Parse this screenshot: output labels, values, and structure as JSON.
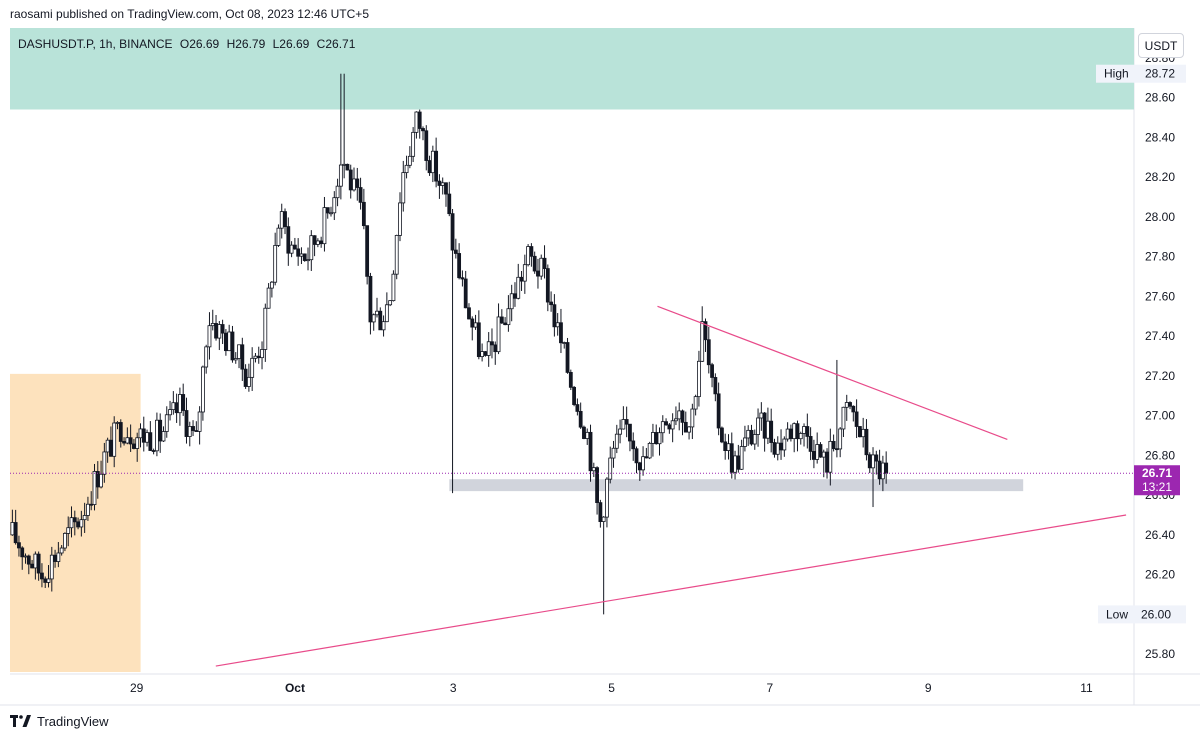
{
  "header": {
    "publisher": "raosami published on TradingView.com, Oct 08, 2023 12:46 UTC+5"
  },
  "legend": {
    "symbol": "DASHUSDT.P, 1h, BINANCE",
    "open_key": "O",
    "open": "26.69",
    "high_key": "H",
    "high": "26.79",
    "low_key": "L",
    "low": "26.69",
    "close_key": "C",
    "close": "26.71"
  },
  "currency_button": "USDT",
  "footer": {
    "brand": "TradingView",
    "logo_icon": "tradingview-logo-icon"
  },
  "colors": {
    "candle": "#131722",
    "resistance_zone": "#b9e3d9",
    "demand_zone": "#fde2bd",
    "support_band": "#d1d4dc",
    "trendline": "#e84b8a",
    "price_label_bg": "#9c27b0",
    "price_line": "#9c27b0"
  },
  "price_labels": {
    "high_label": "High",
    "high_value": "28.72",
    "low_label": "Low",
    "low_value": "26.00",
    "last_price": "26.71",
    "countdown": "13:21"
  },
  "chart_data": {
    "type": "candlestick",
    "symbol": "DASHUSDT.P",
    "interval": "1h",
    "exchange": "BINANCE",
    "ylim": [
      25.7,
      28.95
    ],
    "xlim": [
      -1.6,
      12.6
    ],
    "y_ticks": [
      "25.80",
      "26.00",
      "26.20",
      "26.40",
      "26.60",
      "26.80",
      "27.00",
      "27.20",
      "27.40",
      "27.60",
      "27.80",
      "28.00",
      "28.20",
      "28.40",
      "28.60",
      "28.80"
    ],
    "y_tick_values": [
      25.8,
      26.0,
      26.2,
      26.4,
      26.6,
      26.8,
      27.0,
      27.2,
      27.4,
      27.6,
      27.8,
      28.0,
      28.2,
      28.4,
      28.6,
      28.8
    ],
    "x_ticks": [
      {
        "label": "29",
        "day": 0
      },
      {
        "label": "Oct",
        "day": 2
      },
      {
        "label": "3",
        "day": 4
      },
      {
        "label": "5",
        "day": 6
      },
      {
        "label": "7",
        "day": 8
      },
      {
        "label": "9",
        "day": 10
      },
      {
        "label": "11",
        "day": 12
      }
    ],
    "x_unit": "days from Sep 29",
    "anchors": [
      [
        -1.57,
        26.4
      ],
      [
        -1.2,
        26.2
      ],
      [
        -0.7,
        26.5
      ],
      [
        -0.4,
        26.8
      ],
      [
        -0.2,
        26.95
      ],
      [
        0.0,
        26.9
      ],
      [
        0.3,
        26.9
      ],
      [
        0.55,
        27.05
      ],
      [
        0.75,
        26.85
      ],
      [
        0.9,
        27.5
      ],
      [
        1.2,
        27.35
      ],
      [
        1.4,
        27.2
      ],
      [
        1.6,
        27.4
      ],
      [
        1.8,
        28.0
      ],
      [
        1.95,
        27.85
      ],
      [
        2.15,
        27.8
      ],
      [
        2.4,
        28.0
      ],
      [
        2.6,
        28.3
      ],
      [
        2.85,
        28.0
      ],
      [
        2.95,
        27.5
      ],
      [
        3.1,
        27.5
      ],
      [
        3.2,
        27.6
      ],
      [
        3.35,
        28.2
      ],
      [
        3.55,
        28.5
      ],
      [
        3.7,
        28.3
      ],
      [
        3.9,
        28.1
      ],
      [
        4.0,
        27.85
      ],
      [
        4.2,
        27.5
      ],
      [
        4.4,
        27.25
      ],
      [
        4.55,
        27.4
      ],
      [
        4.75,
        27.6
      ],
      [
        4.95,
        27.8
      ],
      [
        5.15,
        27.7
      ],
      [
        5.3,
        27.45
      ],
      [
        5.5,
        27.15
      ],
      [
        5.7,
        26.9
      ],
      [
        5.85,
        26.45
      ],
      [
        6.0,
        26.8
      ],
      [
        6.2,
        26.95
      ],
      [
        6.4,
        26.75
      ],
      [
        6.6,
        26.95
      ],
      [
        6.85,
        27.05
      ],
      [
        7.0,
        26.95
      ],
      [
        7.15,
        27.45
      ],
      [
        7.3,
        27.05
      ],
      [
        7.4,
        26.9
      ],
      [
        7.55,
        26.75
      ],
      [
        7.75,
        26.9
      ],
      [
        7.95,
        26.95
      ],
      [
        8.1,
        26.85
      ],
      [
        8.3,
        26.95
      ],
      [
        8.5,
        26.9
      ],
      [
        8.7,
        26.75
      ],
      [
        8.85,
        26.9
      ],
      [
        9.0,
        27.05
      ],
      [
        9.2,
        26.85
      ],
      [
        9.3,
        26.75
      ],
      [
        9.5,
        26.7
      ]
    ],
    "spikes": [
      {
        "day": 1.4,
        "low": 27.12
      },
      {
        "day": 2.6,
        "high": 28.72
      },
      {
        "day": 4.0,
        "low": 26.61
      },
      {
        "day": 5.9,
        "low": 26.0
      },
      {
        "day": 7.15,
        "high": 27.55
      },
      {
        "day": 8.7,
        "low": 26.69
      },
      {
        "day": 8.85,
        "high": 27.28
      },
      {
        "day": 9.32,
        "low": 26.54
      }
    ],
    "zones": [
      {
        "name": "resistance-zone",
        "day_start": -1.6,
        "day_end": 12.6,
        "price_low": 28.54,
        "price_high": 28.95
      },
      {
        "name": "demand-zone",
        "day_start": -1.6,
        "day_end": 0.05,
        "price_low": 25.71,
        "price_high": 27.21
      },
      {
        "name": "support-band",
        "day_start": 3.95,
        "day_end": 11.2,
        "price_low": 26.62,
        "price_high": 26.68
      }
    ],
    "trendlines": [
      {
        "name": "descending-trendline",
        "from": [
          6.58,
          27.55
        ],
        "to": [
          11.0,
          26.88
        ]
      },
      {
        "name": "ascending-trendline",
        "from": [
          1.0,
          25.74
        ],
        "to": [
          12.5,
          26.5
        ]
      }
    ],
    "last_price": 26.71,
    "high": 28.72,
    "low": 26.0
  }
}
